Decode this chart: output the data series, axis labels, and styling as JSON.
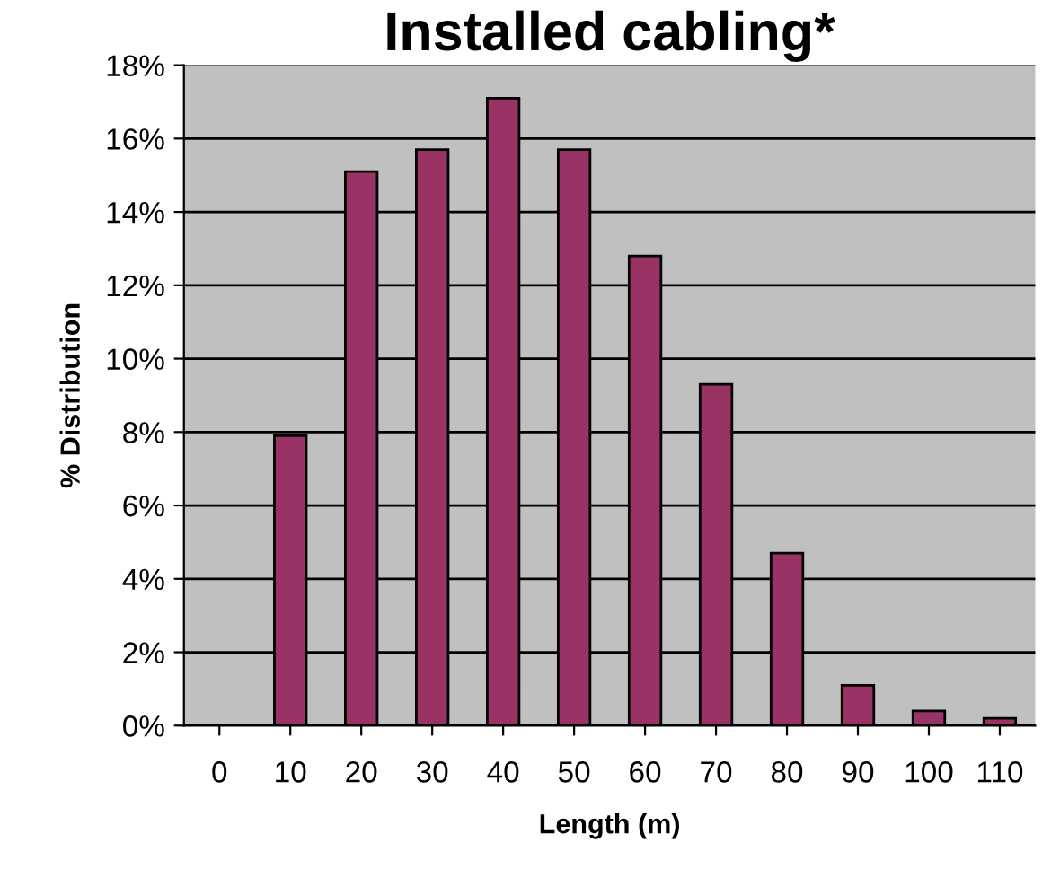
{
  "chart_data": {
    "type": "bar",
    "title": "Installed cabling*",
    "xlabel": "Length (m)",
    "ylabel": "% Distribution",
    "categories": [
      "0",
      "10",
      "20",
      "30",
      "40",
      "50",
      "60",
      "70",
      "80",
      "90",
      "100",
      "110"
    ],
    "values": [
      null,
      7.9,
      15.1,
      15.7,
      17.1,
      15.7,
      12.8,
      9.3,
      4.7,
      1.1,
      0.4,
      0.2
    ],
    "color": "#993366",
    "ylim": [
      0,
      18
    ],
    "yticks": [
      {
        "value": 0,
        "label": "0%"
      },
      {
        "value": 2,
        "label": "2%"
      },
      {
        "value": 4,
        "label": "4%"
      },
      {
        "value": 6,
        "label": "6%"
      },
      {
        "value": 8,
        "label": "8%"
      },
      {
        "value": 10,
        "label": "10%"
      },
      {
        "value": 12,
        "label": "12%"
      },
      {
        "value": 14,
        "label": "14%"
      },
      {
        "value": 16,
        "label": "16%"
      },
      {
        "value": 18,
        "label": "18%"
      }
    ],
    "grid": "y"
  }
}
